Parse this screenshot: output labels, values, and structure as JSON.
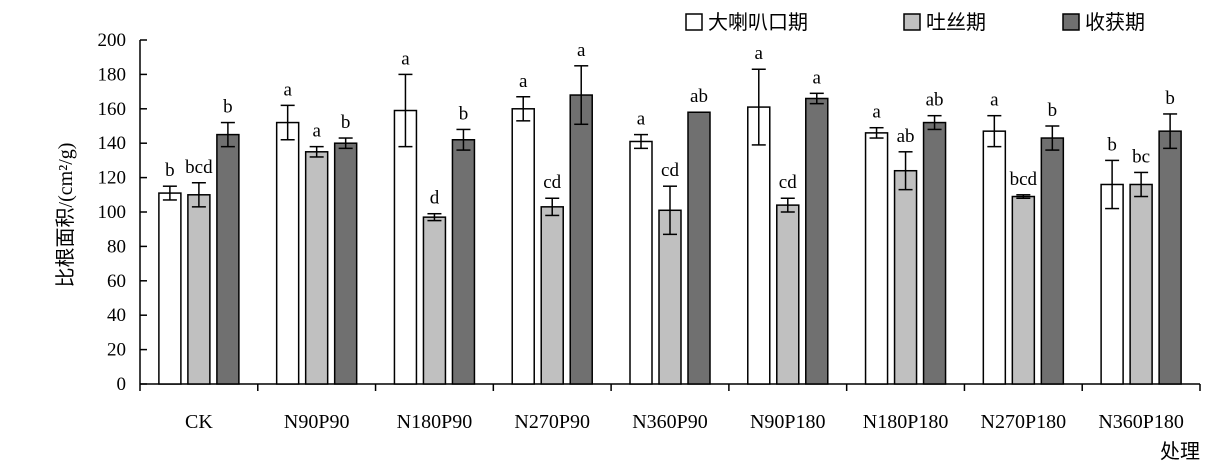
{
  "chart_data": {
    "type": "bar",
    "categories": [
      "CK",
      "N90P90",
      "N180P90",
      "N270P90",
      "N360P90",
      "N90P180",
      "N180P180",
      "N270P180",
      "N360P180"
    ],
    "series": [
      {
        "name": "大喇叭口期",
        "color": "#ffffff",
        "values": [
          111,
          152,
          159,
          160,
          141,
          161,
          146,
          147,
          116
        ],
        "error": [
          4,
          10,
          21,
          7,
          4,
          22,
          3,
          9,
          14
        ],
        "labels": [
          "b",
          "a",
          "a",
          "a",
          "a",
          "a",
          "a",
          "a",
          "b"
        ]
      },
      {
        "name": "吐丝期",
        "color": "#c0c0c0",
        "values": [
          110,
          135,
          97,
          103,
          101,
          104,
          124,
          109,
          116
        ],
        "error": [
          7,
          3,
          2,
          5,
          14,
          4,
          11,
          1,
          7
        ],
        "labels": [
          "bcd",
          "a",
          "d",
          "cd",
          "cd",
          "cd",
          "ab",
          "bcd",
          "bc"
        ]
      },
      {
        "name": "收获期",
        "color": "#707070",
        "values": [
          145,
          140,
          142,
          168,
          158,
          166,
          152,
          143,
          147
        ],
        "error": [
          7,
          3,
          6,
          17,
          0,
          3,
          4,
          7,
          10
        ],
        "labels": [
          "b",
          "b",
          "b",
          "a",
          "ab",
          "a",
          "ab",
          "b",
          "b"
        ]
      }
    ],
    "ylim": [
      0,
      200
    ],
    "yticks": [
      0,
      20,
      40,
      60,
      80,
      100,
      120,
      140,
      160,
      180,
      200
    ],
    "ylabel": "比根面积/(cm²/g)",
    "xlabel": "处理",
    "legend_position": "top-right",
    "grid": false
  }
}
